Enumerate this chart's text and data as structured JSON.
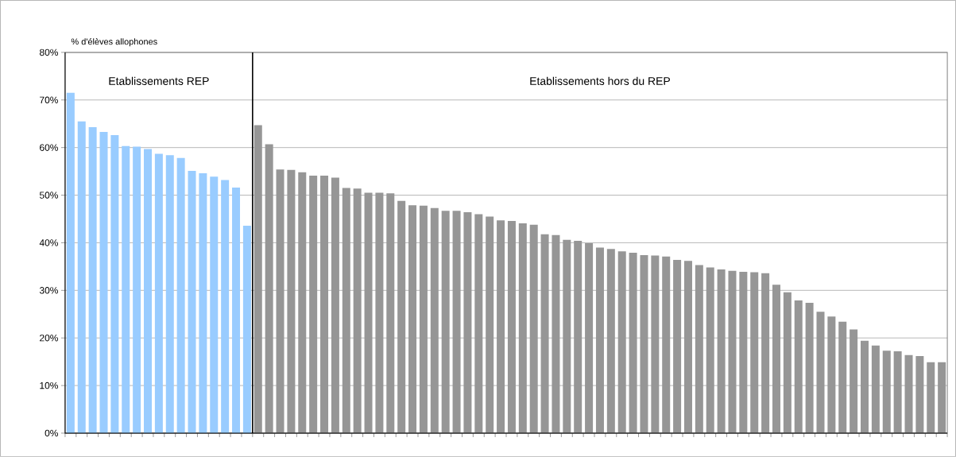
{
  "chart_data": {
    "type": "bar",
    "ylabel": "% d'élèves allophones",
    "categories": [
      null,
      null,
      null,
      null,
      null,
      null,
      null,
      null,
      null,
      null,
      null,
      null,
      null,
      null,
      null,
      null,
      null,
      null,
      null,
      null,
      null,
      null,
      null,
      null,
      null,
      null,
      null,
      null,
      null,
      null,
      null,
      null,
      null,
      null,
      null,
      null,
      null,
      null,
      null,
      null,
      null,
      null,
      null,
      null,
      null,
      null,
      null,
      null,
      null,
      null,
      null,
      null,
      null,
      null,
      null,
      null,
      null,
      null,
      null,
      null,
      null,
      null,
      null,
      null,
      null,
      null,
      null,
      null,
      null,
      null,
      null,
      null,
      null,
      null,
      null,
      null,
      null,
      null,
      null,
      null
    ],
    "values": [
      71.5,
      65.5,
      64.3,
      63.3,
      62.6,
      60.3,
      60.2,
      59.7,
      58.7,
      58.4,
      57.8,
      55.1,
      54.6,
      53.9,
      53.2,
      51.6,
      43.6,
      64.7,
      60.7,
      55.4,
      55.3,
      54.8,
      54.1,
      54.1,
      53.7,
      51.5,
      51.4,
      50.5,
      50.5,
      50.4,
      48.8,
      47.9,
      47.8,
      47.3,
      46.7,
      46.7,
      46.4,
      46.0,
      45.5,
      44.7,
      44.6,
      44.1,
      43.8,
      41.8,
      41.6,
      40.6,
      40.4,
      39.9,
      39.0,
      38.7,
      38.2,
      37.9,
      37.4,
      37.3,
      37.1,
      36.4,
      36.2,
      35.3,
      34.8,
      34.4,
      34.1,
      33.9,
      33.8,
      33.6,
      31.2,
      29.6,
      27.9,
      27.4,
      25.5,
      24.5,
      23.4,
      21.8,
      19.4,
      18.4,
      17.3,
      17.2,
      16.4,
      16.2,
      14.9,
      14.9
    ],
    "colors": [
      "#99ccff",
      "#99ccff",
      "#99ccff",
      "#99ccff",
      "#99ccff",
      "#99ccff",
      "#99ccff",
      "#99ccff",
      "#99ccff",
      "#99ccff",
      "#99ccff",
      "#99ccff",
      "#99ccff",
      "#99ccff",
      "#99ccff",
      "#99ccff",
      "#99ccff",
      "#969696",
      "#969696",
      "#969696",
      "#969696",
      "#969696",
      "#969696",
      "#969696",
      "#969696",
      "#969696",
      "#969696",
      "#969696",
      "#969696",
      "#969696",
      "#969696",
      "#969696",
      "#969696",
      "#969696",
      "#969696",
      "#969696",
      "#969696",
      "#969696",
      "#969696",
      "#969696",
      "#969696",
      "#969696",
      "#969696",
      "#969696",
      "#969696",
      "#969696",
      "#969696",
      "#969696",
      "#969696",
      "#969696",
      "#969696",
      "#969696",
      "#969696",
      "#969696",
      "#969696",
      "#969696",
      "#969696",
      "#969696",
      "#969696",
      "#969696",
      "#969696",
      "#969696",
      "#969696",
      "#969696",
      "#969696",
      "#969696",
      "#969696",
      "#969696",
      "#969696",
      "#969696",
      "#969696",
      "#969696",
      "#969696",
      "#969696",
      "#969696",
      "#969696",
      "#969696",
      "#969696",
      "#969696",
      "#969696"
    ],
    "ylim": [
      0,
      80
    ],
    "yticks": [
      {
        "value": 0,
        "label": "0%"
      },
      {
        "value": 10,
        "label": "10%"
      },
      {
        "value": 20,
        "label": "20%"
      },
      {
        "value": 30,
        "label": "30%"
      },
      {
        "value": 40,
        "label": "40%"
      },
      {
        "value": 50,
        "label": "50%"
      },
      {
        "value": 60,
        "label": "60%"
      },
      {
        "value": 70,
        "label": "70%"
      },
      {
        "value": 80,
        "label": "80%"
      }
    ],
    "grid": "y",
    "annotations": [
      "Etablissements REP",
      "Etablissements hors du REP"
    ]
  }
}
